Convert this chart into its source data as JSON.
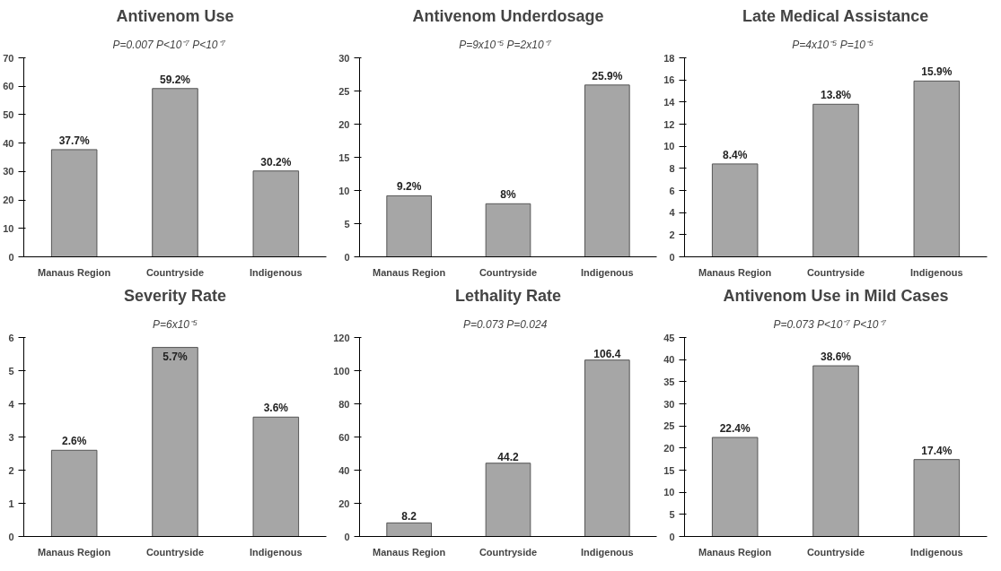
{
  "chart_data": [
    {
      "type": "bar",
      "title": "Antivenom Use",
      "categories": [
        "Manaus Region",
        "Countryside",
        "Indigenous"
      ],
      "values": [
        37.7,
        59.2,
        30.2
      ],
      "color": "#a6a6a6",
      "value_labels": [
        "37.7%",
        "59.2%",
        "30.2%"
      ],
      "ylim": [
        0,
        70
      ],
      "yticks": [
        0,
        10,
        20,
        30,
        40,
        50,
        60,
        70
      ],
      "grid": false,
      "annotations": [
        "P=0.007",
        "P<10⁻⁷",
        "P<10⁻⁷"
      ]
    },
    {
      "type": "bar",
      "title": "Antivenom Underdosage",
      "categories": [
        "Manaus Region",
        "Countryside",
        "Indigenous"
      ],
      "values": [
        9.2,
        8,
        25.9
      ],
      "color": "#a6a6a6",
      "value_labels": [
        "9.2%",
        "8%",
        "25.9%"
      ],
      "ylim": [
        0,
        30
      ],
      "yticks": [
        0,
        5,
        10,
        15,
        20,
        25,
        30
      ],
      "grid": false,
      "annotations": [
        "P=9x10⁻⁵",
        "P=2x10⁻⁷"
      ]
    },
    {
      "type": "bar",
      "title": "Late Medical Assistance",
      "categories": [
        "Manaus Region",
        "Countryside",
        "Indigenous"
      ],
      "values": [
        8.4,
        13.8,
        15.9
      ],
      "color": "#a6a6a6",
      "value_labels": [
        "8.4%",
        "13.8%",
        "15.9%"
      ],
      "ylim": [
        0,
        18
      ],
      "yticks": [
        0,
        2,
        4,
        6,
        8,
        10,
        12,
        14,
        16,
        18
      ],
      "grid": false,
      "annotations": [
        "P=4x10⁻⁵",
        "P=10⁻⁵"
      ]
    },
    {
      "type": "bar",
      "title": "Severity Rate",
      "categories": [
        "Manaus Region",
        "Countryside",
        "Indigenous"
      ],
      "values": [
        2.6,
        5.7,
        3.6
      ],
      "color": "#a6a6a6",
      "value_labels": [
        "2.6%",
        "5.7%",
        "3.6%"
      ],
      "ylim": [
        0,
        6
      ],
      "yticks": [
        0,
        1,
        2,
        3,
        4,
        5,
        6
      ],
      "grid": false,
      "annotations": [
        "P=6x10⁻⁵"
      ]
    },
    {
      "type": "bar",
      "title": "Lethality Rate",
      "categories": [
        "Manaus Region",
        "Countryside",
        "Indigenous"
      ],
      "values": [
        8.2,
        44.2,
        106.4
      ],
      "color": "#a6a6a6",
      "value_labels": [
        "8.2",
        "44.2",
        "106.4"
      ],
      "ylim": [
        0,
        120
      ],
      "yticks": [
        0,
        20,
        40,
        60,
        80,
        100,
        120
      ],
      "grid": false,
      "annotations": [
        "P=0.073",
        "P=0.024"
      ]
    },
    {
      "type": "bar",
      "title": "Antivenom Use in Mild Cases",
      "categories": [
        "Manaus Region",
        "Countryside",
        "Indigenous"
      ],
      "values": [
        22.4,
        38.6,
        17.4
      ],
      "color": "#a6a6a6",
      "value_labels": [
        "22.4%",
        "38.6%",
        "17.4%"
      ],
      "ylim": [
        0,
        45
      ],
      "yticks": [
        0,
        5,
        10,
        15,
        20,
        25,
        30,
        35,
        40,
        45
      ],
      "grid": false,
      "annotations": [
        "P=0.073",
        "P<10⁻⁷",
        "P<10⁻⁷"
      ]
    }
  ]
}
